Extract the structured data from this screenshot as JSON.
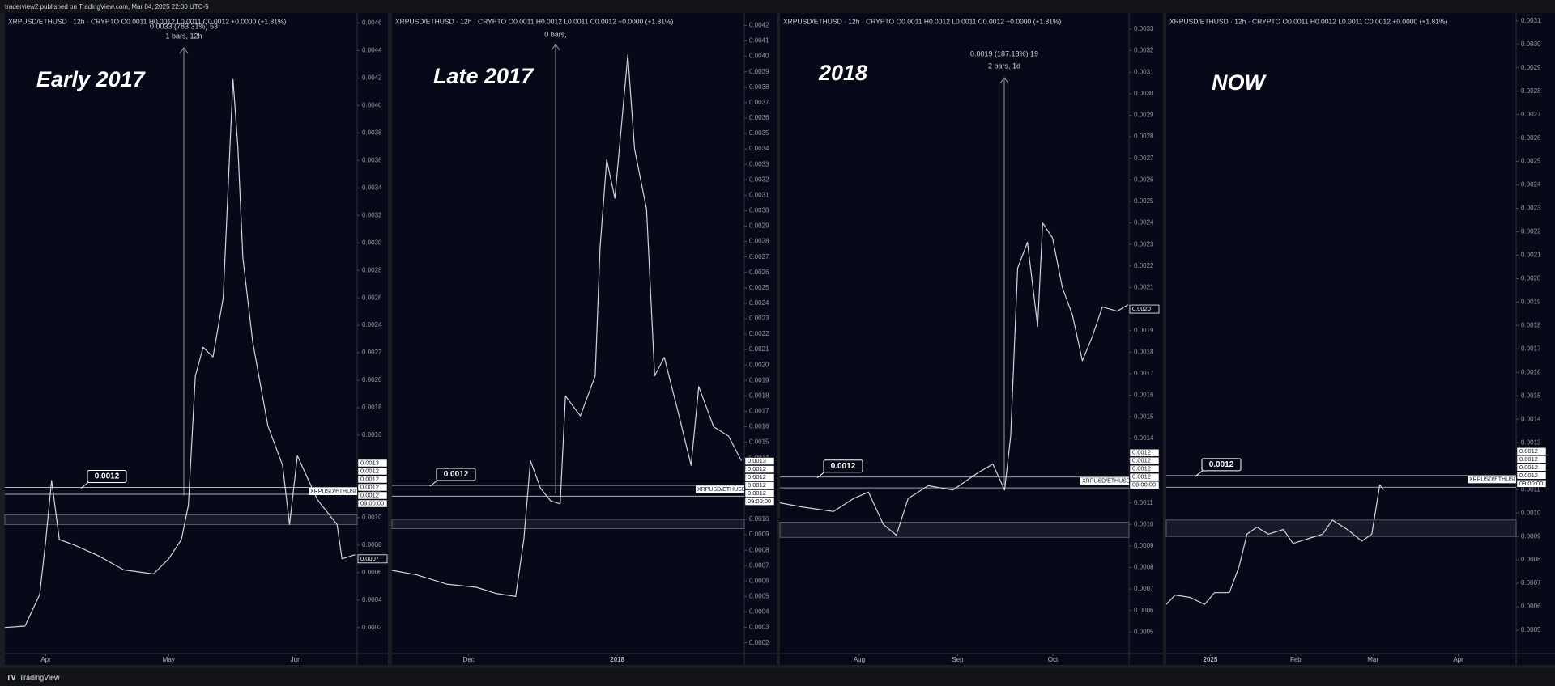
{
  "page": {
    "publisher_line": "traderview2 published on TradingView.com, Mar 04, 2025 22:00 UTC-5",
    "footer": "TradingView"
  },
  "chart_data": [
    {
      "type": "line",
      "header": "XRPUSD/ETHUSD · 12h · CRYPTO  O0.0011  H0.0012  L0.0011  C0.0012  +0.0000 (+1.81%)",
      "label": "Early 2017",
      "measure": [
        "0.0033 (783.31%) 53",
        "1 bars, 12h"
      ],
      "color": "#d1d4dc",
      "grid": false,
      "x": [
        0,
        4.9,
        8.5,
        10,
        11.4,
        13.3,
        17,
        23,
        29,
        36.3,
        40,
        43.1,
        44.8,
        46.5,
        48.4,
        50.8,
        53.3,
        55.7,
        56.9,
        58.1,
        60.5,
        64.2,
        67.8,
        69.5,
        71.4,
        76.3,
        81.1,
        82.3,
        85.5
      ],
      "values": [
        0.0002,
        0.00021,
        0.00044,
        0.00084,
        0.00127,
        0.00084,
        0.0008,
        0.00072,
        0.00062,
        0.00059,
        0.0007,
        0.00084,
        0.00109,
        0.00203,
        0.00224,
        0.00217,
        0.0026,
        0.00419,
        0.00369,
        0.00289,
        0.00228,
        0.00167,
        0.00138,
        0.00095,
        0.00145,
        0.00113,
        0.00095,
        0.0007,
        0.00073
      ],
      "xlim": [
        0,
        86
      ],
      "xticks": [
        {
          "value": 10,
          "label": "Apr"
        },
        {
          "value": 40,
          "label": "May"
        },
        {
          "value": 71,
          "label": "Jun"
        }
      ],
      "ylim": [
        1e-05,
        0.00465
      ],
      "yticks": [
        0.0002,
        0.0004,
        0.0006,
        0.0008,
        {
          "value": 0.001,
          "label": "0.0010"
        },
        0.0012,
        0.0014,
        0.0016,
        0.0018,
        {
          "value": 0.002,
          "label": "0.0020"
        },
        0.0022,
        0.0024,
        0.0026,
        0.0028,
        {
          "value": 0.003,
          "label": "0.0030"
        },
        0.0032,
        0.0034,
        0.0036,
        0.0038,
        {
          "value": 0.004,
          "label": "0.0040"
        },
        0.0042,
        0.0044,
        0.0046
      ],
      "levels": [
        0.00122,
        0.00117
      ],
      "zone": [
        0.00095,
        0.00102
      ],
      "callout": 0.0012,
      "tag_name": "XRPUSD/ETHUSD",
      "axis_tags": [
        "0.0013",
        "0.0012",
        "0.0012",
        "0.0012",
        "0.0012",
        "09:00:00"
      ],
      "last_price": 0.0007
    },
    {
      "type": "line",
      "header": "XRPUSD/ETHUSD · 12h · CRYPTO  O0.0011  H0.0012  L0.0011  C0.0012  +0.0000 (+1.81%)",
      "label": "Late 2017",
      "measure": [
        "0 bars,"
      ],
      "color": "#d1d4dc",
      "grid": false,
      "x": [
        0,
        5.2,
        11.4,
        17.6,
        21.7,
        25.8,
        27.5,
        28.9,
        31,
        33.1,
        35.1,
        36.2,
        39.3,
        42.4,
        43.4,
        44.8,
        46.5,
        49.2,
        50.6,
        53.1,
        54.8,
        56.8,
        59.9,
        62.4,
        64,
        67.1,
        70.2,
        72.9
      ],
      "values": [
        0.00067,
        0.00064,
        0.00058,
        0.00056,
        0.00052,
        0.0005,
        0.00087,
        0.00138,
        0.0012,
        0.00112,
        0.0011,
        0.0018,
        0.00167,
        0.00193,
        0.00276,
        0.00333,
        0.00308,
        0.00401,
        0.0034,
        0.00301,
        0.00193,
        0.00205,
        0.00167,
        0.00135,
        0.00186,
        0.0016,
        0.00154,
        0.00138
      ],
      "xlim": [
        0,
        73.5
      ],
      "xticks": [
        {
          "value": 16,
          "label": "Dec"
        },
        {
          "value": 47,
          "label": "2018"
        }
      ],
      "ylim": [
        0.00013,
        0.00426
      ],
      "yticks": [
        0.0002,
        0.0003,
        0.0004,
        0.0005,
        0.0006,
        0.0007,
        0.0008,
        0.0009,
        {
          "value": 0.001,
          "label": "0.0010"
        },
        0.0011,
        0.0012,
        0.0013,
        0.0014,
        0.0015,
        0.0016,
        0.0017,
        0.0018,
        0.0019,
        {
          "value": 0.002,
          "label": "0.0020"
        },
        0.0021,
        0.0022,
        0.0023,
        0.0024,
        0.0025,
        0.0026,
        0.0027,
        0.0028,
        0.0029,
        {
          "value": 0.003,
          "label": "0.0030"
        },
        0.0031,
        0.0032,
        0.0033,
        0.0034,
        0.0035,
        0.0036,
        0.0037,
        0.0038,
        0.0039,
        {
          "value": 0.004,
          "label": "0.0040"
        },
        0.0041,
        0.0042
      ],
      "levels": [
        0.00122,
        0.00115
      ],
      "zone": [
        0.00094,
        0.001
      ],
      "callout": 0.0012,
      "tag_name": "XRPUSD/ETHUSD",
      "axis_tags": [
        "0.0013",
        "0.0012",
        "0.0012",
        "0.0012",
        "0.0012",
        "09:00:00"
      ]
    },
    {
      "type": "line",
      "header": "XRPUSD/ETHUSD · 12h · CRYPTO  O0.0011  H0.0012  L0.0011  C0.0012  +0.0000 (+1.81%)",
      "label": "2018",
      "measure": [
        "0.0019 (187.18%) 19",
        "2 bars, 1d"
      ],
      "color": "#d1d4dc",
      "grid": false,
      "x": [
        0,
        7.5,
        16.9,
        23.2,
        27.9,
        32.6,
        36.7,
        40.4,
        46.7,
        54.5,
        62.4,
        67.1,
        70.8,
        72.7,
        74.9,
        78,
        81.2,
        82.8,
        85.9,
        89,
        92.2,
        95.3,
        98.4,
        101.6,
        106.3,
        109.7
      ],
      "values": [
        0.0011,
        0.00108,
        0.00106,
        0.00112,
        0.00115,
        0.001,
        0.00095,
        0.00112,
        0.00118,
        0.00116,
        0.00124,
        0.00128,
        0.00116,
        0.00141,
        0.00219,
        0.00231,
        0.00192,
        0.0024,
        0.00233,
        0.0021,
        0.00197,
        0.00176,
        0.00187,
        0.00201,
        0.00199,
        0.00202
      ],
      "xlim": [
        0,
        110
      ],
      "xticks": [
        {
          "value": 25,
          "label": "Aug"
        },
        {
          "value": 56,
          "label": "Sep"
        },
        {
          "value": 86,
          "label": "Oct"
        }
      ],
      "ylim": [
        0.0004,
        0.00336
      ],
      "yticks": [
        0.0005,
        0.0006,
        0.0007,
        0.0008,
        0.0009,
        {
          "value": 0.001,
          "label": "0.0010"
        },
        0.0011,
        0.0012,
        0.0013,
        0.0014,
        0.0015,
        0.0016,
        0.0017,
        0.0018,
        0.0019,
        {
          "value": 0.002,
          "label": "0.0020"
        },
        0.0021,
        0.0022,
        0.0023,
        0.0024,
        0.0025,
        0.0026,
        0.0027,
        0.0028,
        0.0029,
        {
          "value": 0.003,
          "label": "0.0030"
        },
        0.0031,
        0.0032,
        0.0033
      ],
      "levels": [
        0.00122,
        0.00117
      ],
      "zone": [
        0.00094,
        0.00101
      ],
      "callout": 0.0012,
      "tag_name": "XRPUSD/ETHUSD",
      "axis_tags": [
        "0.0012",
        "0.0012",
        "0.0012",
        "0.0012",
        "09:00:00"
      ],
      "last_price": {
        "value": 0.002,
        "label": "0.0020"
      }
    },
    {
      "type": "line",
      "header": "XRPUSD/ETHUSD · 12h · CRYPTO  O0.0011  H0.0012  L0.0011  C0.0012  +0.0000 (+1.81%)",
      "label": "NOW",
      "color": "#d1d4dc",
      "grid": false,
      "x": [
        0,
        3.2,
        8.6,
        13.9,
        17.5,
        22.9,
        26.4,
        29.3,
        32.9,
        37.1,
        42.5,
        46,
        51.4,
        56.8,
        60.3,
        65.7,
        71,
        74.6,
        76.4,
        77.5,
        78.9
      ],
      "values": [
        0.00061,
        0.00065,
        0.00064,
        0.00061,
        0.00066,
        0.00066,
        0.00077,
        0.00091,
        0.00094,
        0.00091,
        0.00093,
        0.00087,
        0.00089,
        0.00091,
        0.00097,
        0.00093,
        0.00088,
        0.00091,
        0.00104,
        0.00112,
        0.0011
      ],
      "xlim": [
        0,
        127
      ],
      "xticks": [
        {
          "value": 16,
          "label": "2025"
        },
        {
          "value": 47,
          "label": "Feb"
        },
        {
          "value": 75,
          "label": "Mar"
        },
        {
          "value": 106,
          "label": "Apr"
        }
      ],
      "ylim": [
        0.0004,
        0.00312
      ],
      "yticks": [
        0.0005,
        0.0006,
        0.0007,
        0.0008,
        0.0009,
        {
          "value": 0.001,
          "label": "0.0010"
        },
        0.0011,
        0.0012,
        0.0013,
        0.0014,
        0.0015,
        0.0016,
        0.0017,
        0.0018,
        0.0019,
        {
          "value": 0.002,
          "label": "0.0020"
        },
        0.0021,
        0.0022,
        0.0023,
        0.0024,
        0.0025,
        0.0026,
        0.0027,
        0.0028,
        0.0029,
        {
          "value": 0.003,
          "label": "0.0030"
        },
        0.0031
      ],
      "levels": [
        0.00116,
        0.00111
      ],
      "zone": [
        0.0009,
        0.00097
      ],
      "callout": 0.0012,
      "tag_name": "XRPUSD/ETHUSD",
      "axis_tags": [
        "0.0012",
        "0.0012",
        "0.0012",
        "0.0012",
        "09:00:00"
      ]
    }
  ]
}
